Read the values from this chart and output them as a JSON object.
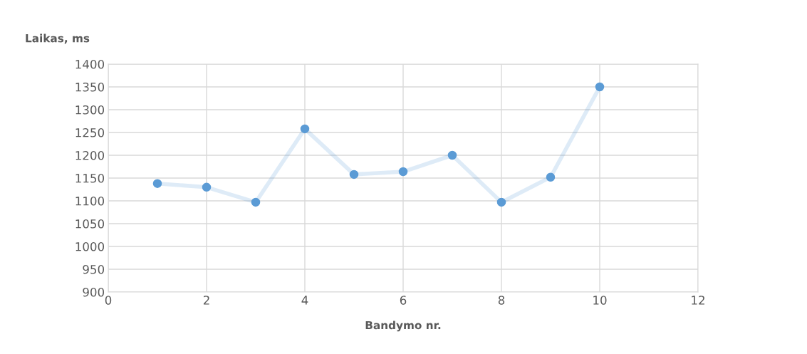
{
  "chart_data": {
    "type": "line",
    "ylabel": "Laikas, ms",
    "xlabel": "Bandymo nr.",
    "x": [
      1,
      2,
      3,
      4,
      5,
      6,
      7,
      8,
      9,
      10
    ],
    "series": [
      {
        "color": "#5b9bd5",
        "values": [
          1138,
          1130,
          1097,
          1258,
          1158,
          1164,
          1200,
          1097,
          1152,
          1350
        ]
      }
    ],
    "xlim": [
      0,
      12
    ],
    "xticks": [
      0,
      2,
      4,
      6,
      8,
      10,
      12
    ],
    "ylim": [
      900,
      1400
    ],
    "yticks": [
      900,
      950,
      1000,
      1050,
      1100,
      1150,
      1200,
      1250,
      1300,
      1350,
      1400
    ],
    "grid": true,
    "marker": "circle",
    "line_style": "solid",
    "legend": false
  }
}
